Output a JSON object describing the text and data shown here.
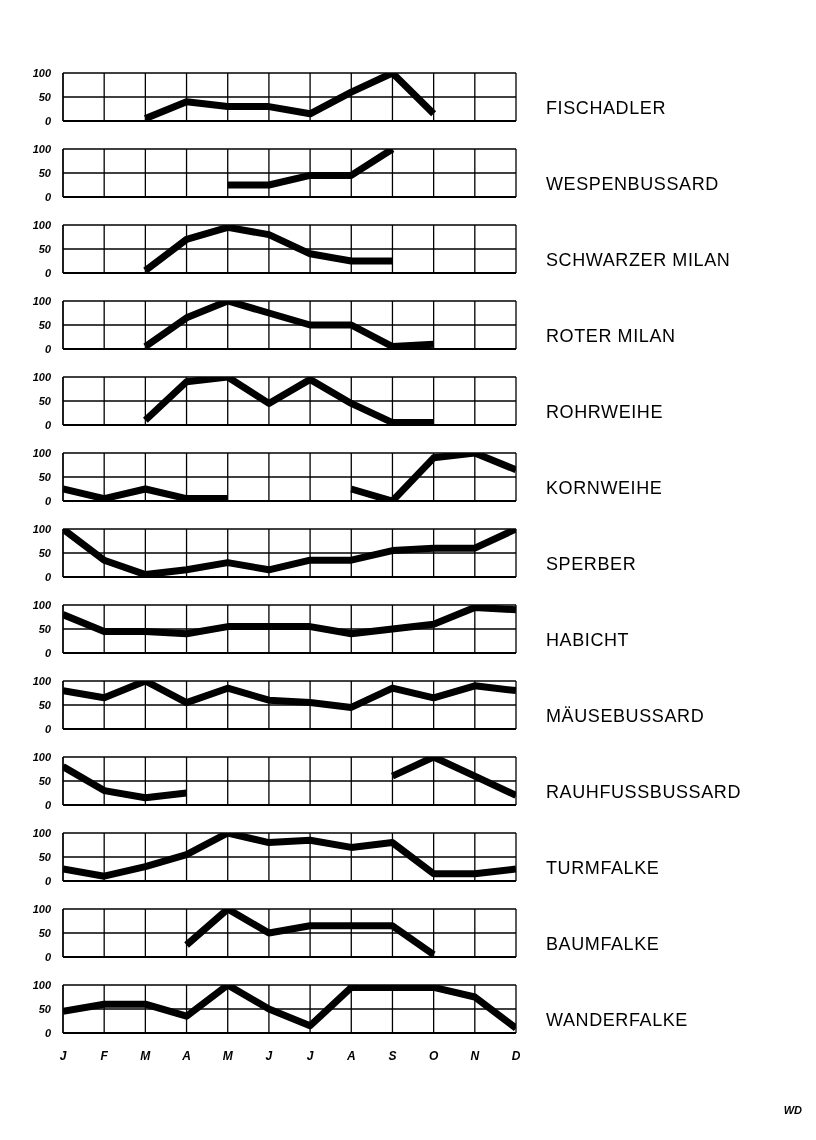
{
  "chart_data": [
    {
      "type": "line",
      "categories": [
        null,
        null,
        null,
        null,
        null,
        null,
        null,
        null,
        null,
        null,
        null,
        null
      ],
      "series": [
        {
          "name": "FISCHADLER",
          "color": "#000000",
          "values": [
            null,
            null,
            5,
            40,
            30,
            30,
            15,
            60,
            100,
            15,
            null,
            null
          ]
        }
      ],
      "ylim": [
        0,
        100
      ],
      "yticks": [
        0,
        50,
        100
      ],
      "grid": true
    },
    {
      "type": "line",
      "categories": [
        null,
        null,
        null,
        null,
        null,
        null,
        null,
        null,
        null,
        null,
        null,
        null
      ],
      "series": [
        {
          "name": "WESPENBUSSARD",
          "color": "#000000",
          "values": [
            null,
            null,
            null,
            null,
            25,
            25,
            45,
            45,
            100,
            null,
            null,
            null
          ]
        }
      ],
      "ylim": [
        0,
        100
      ],
      "yticks": [
        0,
        50,
        100
      ],
      "grid": true
    },
    {
      "type": "line",
      "categories": [
        null,
        null,
        null,
        null,
        null,
        null,
        null,
        null,
        null,
        null,
        null,
        null
      ],
      "series": [
        {
          "name": "SCHWARZER MILAN",
          "color": "#000000",
          "values": [
            null,
            null,
            5,
            70,
            95,
            80,
            40,
            25,
            25,
            null,
            null,
            null
          ]
        }
      ],
      "ylim": [
        0,
        100
      ],
      "yticks": [
        0,
        50,
        100
      ],
      "grid": true
    },
    {
      "type": "line",
      "categories": [
        null,
        null,
        null,
        null,
        null,
        null,
        null,
        null,
        null,
        null,
        null,
        null
      ],
      "series": [
        {
          "name": "ROTER MILAN",
          "color": "#000000",
          "values": [
            null,
            null,
            5,
            65,
            100,
            75,
            50,
            50,
            5,
            10,
            null,
            null
          ]
        }
      ],
      "ylim": [
        0,
        100
      ],
      "yticks": [
        0,
        50,
        100
      ],
      "grid": true
    },
    {
      "type": "line",
      "categories": [
        null,
        null,
        null,
        null,
        null,
        null,
        null,
        null,
        null,
        null,
        null,
        null
      ],
      "series": [
        {
          "name": "ROHRWEIHE",
          "color": "#000000",
          "values": [
            null,
            null,
            10,
            90,
            100,
            45,
            95,
            45,
            5,
            5,
            null,
            null
          ]
        }
      ],
      "ylim": [
        0,
        100
      ],
      "yticks": [
        0,
        50,
        100
      ],
      "grid": true
    },
    {
      "type": "line",
      "categories": [
        null,
        null,
        null,
        null,
        null,
        null,
        null,
        null,
        null,
        null,
        null,
        null
      ],
      "series": [
        {
          "name": "KORNWEIHE",
          "color": "#000000",
          "values": [
            25,
            5,
            25,
            5,
            5,
            null,
            null,
            25,
            0,
            90,
            100,
            65
          ]
        }
      ],
      "ylim": [
        0,
        100
      ],
      "yticks": [
        0,
        50,
        100
      ],
      "grid": true
    },
    {
      "type": "line",
      "categories": [
        null,
        null,
        null,
        null,
        null,
        null,
        null,
        null,
        null,
        null,
        null,
        null
      ],
      "series": [
        {
          "name": "SPERBER",
          "color": "#000000",
          "values": [
            100,
            35,
            5,
            15,
            30,
            15,
            35,
            35,
            55,
            60,
            60,
            100
          ]
        }
      ],
      "ylim": [
        0,
        100
      ],
      "yticks": [
        0,
        50,
        100
      ],
      "grid": true
    },
    {
      "type": "line",
      "categories": [
        null,
        null,
        null,
        null,
        null,
        null,
        null,
        null,
        null,
        null,
        null,
        null
      ],
      "series": [
        {
          "name": "HABICHT",
          "color": "#000000",
          "values": [
            80,
            45,
            45,
            40,
            55,
            55,
            55,
            40,
            50,
            60,
            95,
            90
          ]
        }
      ],
      "ylim": [
        0,
        100
      ],
      "yticks": [
        0,
        50,
        100
      ],
      "grid": true
    },
    {
      "type": "line",
      "categories": [
        null,
        null,
        null,
        null,
        null,
        null,
        null,
        null,
        null,
        null,
        null,
        null
      ],
      "series": [
        {
          "name": "MÄUSEBUSSARD",
          "color": "#000000",
          "values": [
            80,
            65,
            100,
            55,
            85,
            60,
            55,
            45,
            85,
            65,
            90,
            80
          ]
        }
      ],
      "ylim": [
        0,
        100
      ],
      "yticks": [
        0,
        50,
        100
      ],
      "grid": true
    },
    {
      "type": "line",
      "categories": [
        null,
        null,
        null,
        null,
        null,
        null,
        null,
        null,
        null,
        null,
        null,
        null
      ],
      "series": [
        {
          "name": "RAUHFUSSBUSSARD",
          "color": "#000000",
          "values": [
            80,
            30,
            15,
            25,
            null,
            null,
            null,
            null,
            60,
            100,
            60,
            20
          ]
        }
      ],
      "ylim": [
        0,
        100
      ],
      "yticks": [
        0,
        50,
        100
      ],
      "grid": true
    },
    {
      "type": "line",
      "categories": [
        null,
        null,
        null,
        null,
        null,
        null,
        null,
        null,
        null,
        null,
        null,
        null
      ],
      "series": [
        {
          "name": "TURMFALKE",
          "color": "#000000",
          "values": [
            25,
            10,
            30,
            55,
            100,
            80,
            85,
            70,
            80,
            15,
            15,
            25
          ]
        }
      ],
      "ylim": [
        0,
        100
      ],
      "yticks": [
        0,
        50,
        100
      ],
      "grid": true
    },
    {
      "type": "line",
      "categories": [
        null,
        null,
        null,
        null,
        null,
        null,
        null,
        null,
        null,
        null,
        null,
        null
      ],
      "series": [
        {
          "name": "BAUMFALKE",
          "color": "#000000",
          "values": [
            null,
            null,
            null,
            25,
            100,
            50,
            65,
            65,
            65,
            5,
            null,
            null
          ]
        }
      ],
      "ylim": [
        0,
        100
      ],
      "yticks": [
        0,
        50,
        100
      ],
      "grid": true
    },
    {
      "type": "line",
      "categories": [
        "J",
        "F",
        "M",
        "A",
        "M",
        "J",
        "J",
        "A",
        "S",
        "O",
        "N",
        "D"
      ],
      "series": [
        {
          "name": "WANDERFALKE",
          "color": "#000000",
          "values": [
            45,
            60,
            60,
            35,
            100,
            50,
            15,
            95,
            95,
            95,
            75,
            10
          ]
        }
      ],
      "ylim": [
        0,
        100
      ],
      "yticks": [
        0,
        50,
        100
      ],
      "grid": true,
      "annotations": [
        "WD"
      ]
    }
  ]
}
